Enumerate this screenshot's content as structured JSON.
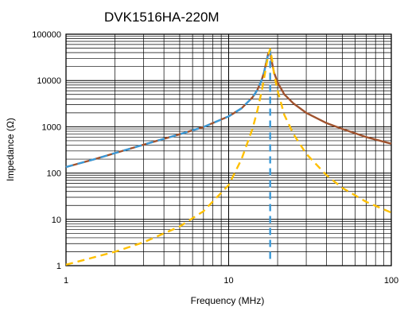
{
  "chart_data": {
    "type": "line",
    "title": "DVK1516HA-220M",
    "xlabel": "Frequency (MHz)",
    "ylabel": "Impedance (Ω)",
    "x_scale": "log",
    "y_scale": "log",
    "xlim": [
      1,
      100
    ],
    "ylim": [
      1,
      100000
    ],
    "x_ticks": [
      1,
      10,
      100
    ],
    "x_tick_labels": [
      "1",
      "10",
      "100"
    ],
    "y_ticks": [
      1,
      10,
      100,
      1000,
      10000,
      100000
    ],
    "y_tick_labels": [
      "1",
      "10",
      "100",
      "1000",
      "10000",
      "100000"
    ],
    "grid": true,
    "legend": "none",
    "series": [
      {
        "style": "solid",
        "color": "#a0522d",
        "x": [
          1,
          1.5,
          2,
          3,
          5,
          7,
          10,
          12,
          14,
          15,
          16,
          16.5,
          17,
          17.5,
          18,
          18.5,
          19,
          20,
          22,
          25,
          30,
          40,
          50,
          70,
          100
        ],
        "y": [
          135,
          200,
          270,
          410,
          690,
          990,
          1680,
          2500,
          4300,
          6200,
          10500,
          15000,
          24000,
          38000,
          40000,
          24000,
          15000,
          9000,
          5000,
          3200,
          2000,
          1200,
          900,
          600,
          430
        ]
      },
      {
        "style": "dashed",
        "color": "#3a9ad9",
        "x": [
          1,
          1.5,
          2,
          3,
          5,
          7,
          10,
          12,
          14,
          15,
          16,
          16.5,
          17,
          17.5,
          18,
          18,
          18
        ],
        "y": [
          135,
          200,
          270,
          410,
          690,
          990,
          1680,
          2500,
          4300,
          6200,
          10500,
          15000,
          24000,
          36000,
          45000,
          10000,
          1.2
        ]
      },
      {
        "style": "dashed",
        "color": "#ffc000",
        "x": [
          1,
          2,
          3,
          5,
          7,
          10,
          12,
          14,
          15,
          16,
          16.5,
          17,
          17.5,
          18,
          18.5,
          19,
          20,
          22,
          25,
          30,
          40,
          50,
          70,
          100
        ],
        "y": [
          1.05,
          2,
          3.2,
          7,
          15,
          55,
          200,
          900,
          2200,
          6000,
          11000,
          20000,
          35000,
          48000,
          28000,
          14000,
          6000,
          1800,
          700,
          260,
          90,
          48,
          24,
          14
        ]
      }
    ]
  }
}
